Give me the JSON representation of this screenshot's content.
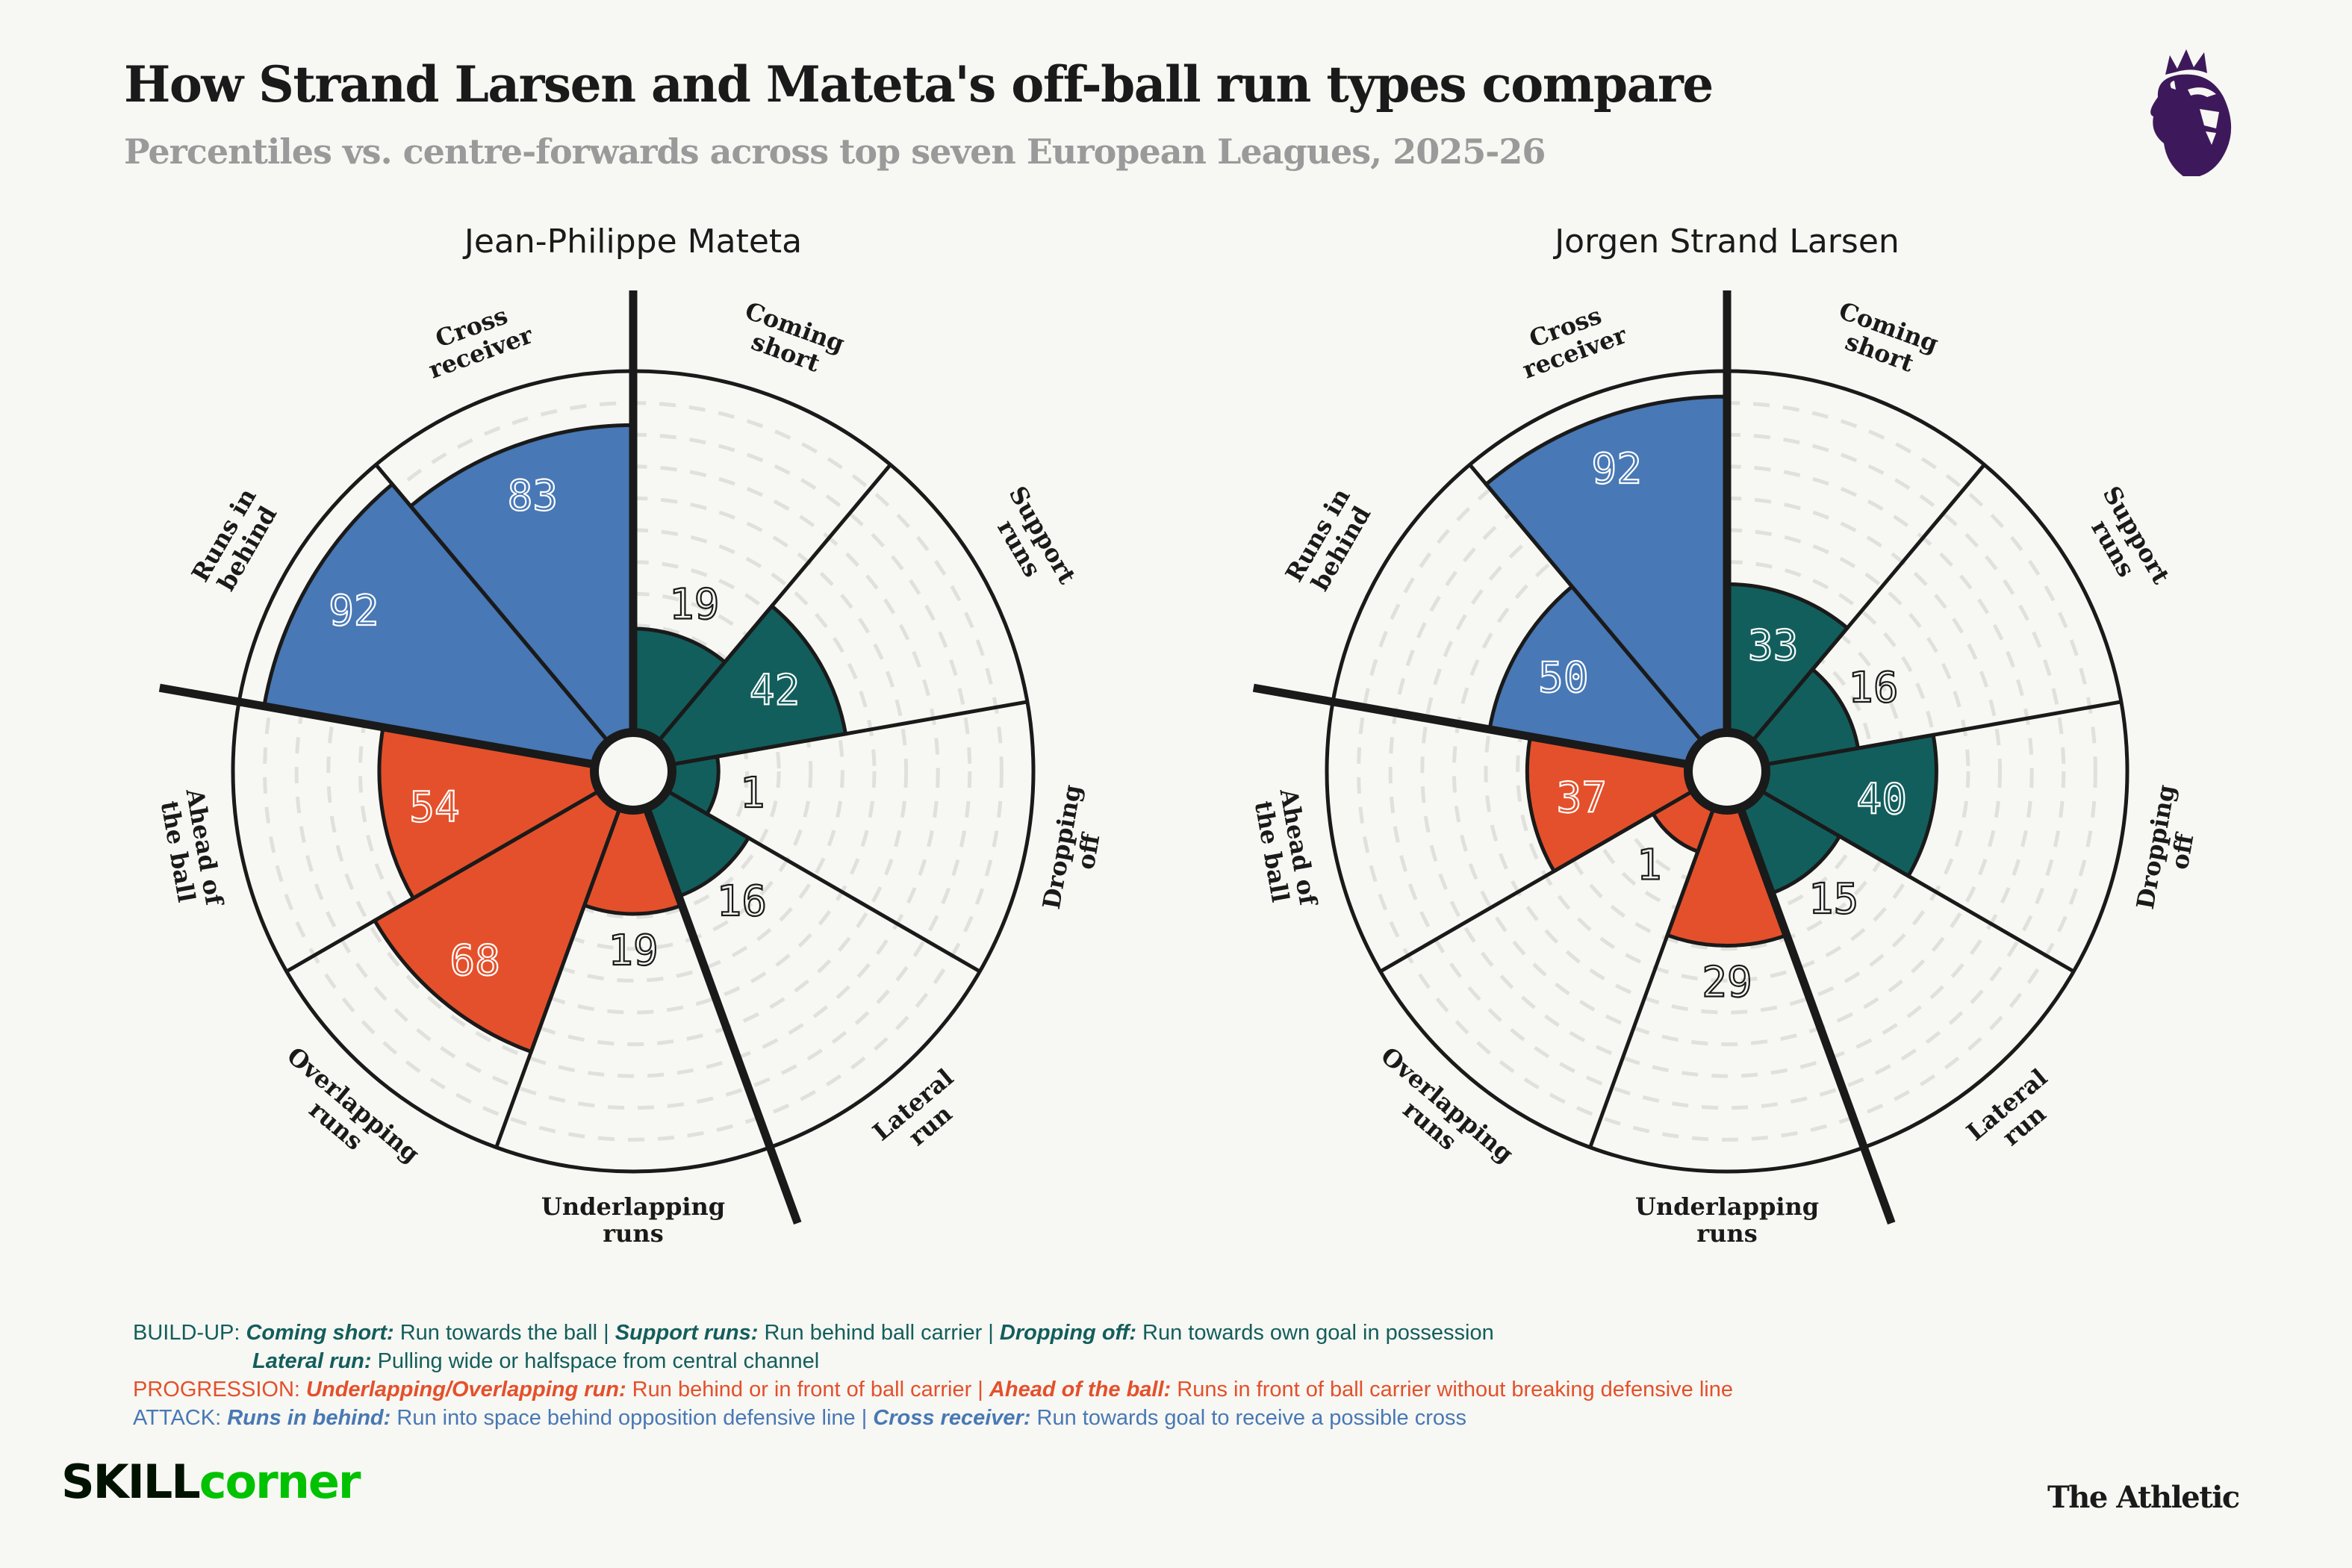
{
  "header": {
    "title": "How Strand Larsen and Mateta's off-ball run types compare",
    "subtitle": "Percentiles vs. centre-forwards across top seven European Leagues, 2025-26",
    "league_logo": "premier-league-lion-icon"
  },
  "colors": {
    "build_up": "#125e5c",
    "progression": "#e4502b",
    "attack": "#4878b5",
    "background": "#f7f7f3",
    "ink": "#1a1a1a",
    "grid": "#e0e0dc",
    "league_purple": "#3d195b",
    "skillcorner_green": "#00c200"
  },
  "chart_data": [
    {
      "type": "polar-bar",
      "title": "Jean-Philippe Mateta",
      "categories": [
        "Coming short",
        "Support runs",
        "Dropping off",
        "Lateral run",
        "Underlapping runs",
        "Overlapping runs",
        "Ahead of the ball",
        "Runs in behind",
        "Cross receiver"
      ],
      "category_labels": [
        [
          "Coming",
          "short"
        ],
        [
          "Support",
          "runs"
        ],
        [
          "Dropping",
          "off"
        ],
        [
          "Lateral",
          "run"
        ],
        [
          "Underlapping",
          "runs"
        ],
        [
          "Overlapping",
          "runs"
        ],
        [
          "Ahead of",
          "the ball"
        ],
        [
          "Runs in",
          "behind"
        ],
        [
          "Cross",
          "receiver"
        ]
      ],
      "groups": [
        "build_up",
        "build_up",
        "build_up",
        "build_up",
        "progression",
        "progression",
        "progression",
        "attack",
        "attack"
      ],
      "values": [
        19,
        42,
        1,
        16,
        19,
        68,
        54,
        92,
        83
      ],
      "rlim": [
        0,
        100
      ],
      "grid_step": 10,
      "group_dividers": [
        "Coming short|Cross receiver",
        "Lateral run|Underlapping runs",
        "Ahead of the ball|Runs in behind"
      ],
      "direction": "clockwise-from-top"
    },
    {
      "type": "polar-bar",
      "title": "Jorgen Strand Larsen",
      "categories": [
        "Coming short",
        "Support runs",
        "Dropping off",
        "Lateral run",
        "Underlapping runs",
        "Overlapping runs",
        "Ahead of the ball",
        "Runs in behind",
        "Cross receiver"
      ],
      "category_labels": [
        [
          "Coming",
          "short"
        ],
        [
          "Support",
          "runs"
        ],
        [
          "Dropping",
          "off"
        ],
        [
          "Lateral",
          "run"
        ],
        [
          "Underlapping",
          "runs"
        ],
        [
          "Overlapping",
          "runs"
        ],
        [
          "Ahead of",
          "the ball"
        ],
        [
          "Runs in",
          "behind"
        ],
        [
          "Cross",
          "receiver"
        ]
      ],
      "groups": [
        "build_up",
        "build_up",
        "build_up",
        "build_up",
        "progression",
        "progression",
        "progression",
        "attack",
        "attack"
      ],
      "values": [
        33,
        16,
        40,
        15,
        29,
        1,
        37,
        50,
        92
      ],
      "rlim": [
        0,
        100
      ],
      "grid_step": 10,
      "group_dividers": [
        "Coming short|Cross receiver",
        "Lateral run|Underlapping runs",
        "Ahead of the ball|Runs in behind"
      ],
      "direction": "clockwise-from-top"
    }
  ],
  "legend": {
    "build_up": {
      "prefix": "BUILD-UP: ",
      "items": [
        {
          "term": "Coming short:",
          "desc": " Run towards the ball | "
        },
        {
          "term": "Support runs:",
          "desc": " Run behind ball carrier | "
        },
        {
          "term": "Dropping off:",
          "desc": " Run towards own goal in possession"
        }
      ],
      "line2": {
        "term": "Lateral run:",
        "desc": " Pulling wide or halfspace from central channel"
      }
    },
    "progression": {
      "prefix": "PROGRESSION: ",
      "items": [
        {
          "term": "Underlapping/Overlapping run:",
          "desc": " Run behind or in front of ball carrier | "
        },
        {
          "term": "Ahead of the ball:",
          "desc": " Runs in front of ball carrier without breaking defensive line"
        }
      ]
    },
    "attack": {
      "prefix": "ATTACK: ",
      "items": [
        {
          "term": "Runs in behind:",
          "desc": " Run into space behind opposition defensive line | "
        },
        {
          "term": "Cross receiver:",
          "desc": " Run towards goal to receive a possible cross"
        }
      ]
    }
  },
  "footer": {
    "data_source_logo_a": "SKILL",
    "data_source_logo_b": "corner",
    "publisher": "The Athletic"
  }
}
